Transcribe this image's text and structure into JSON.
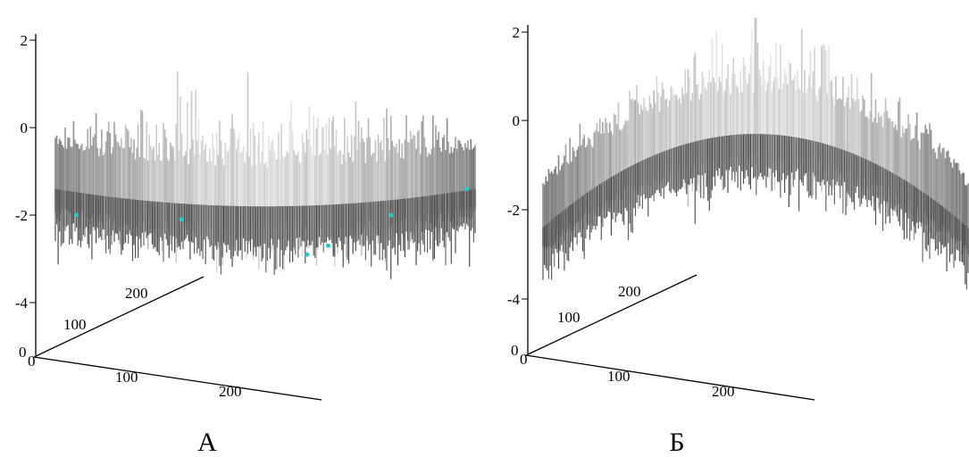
{
  "chart_data": [
    {
      "type": "surface",
      "panel_label": "А",
      "z_ticks": [
        "2",
        "0",
        "-2",
        "-4"
      ],
      "z_range": [
        -4.5,
        2.5
      ],
      "x_ticks": [
        "0",
        "100",
        "200"
      ],
      "y_ticks": [
        "0",
        "100",
        "200"
      ],
      "x_range": [
        0,
        256
      ],
      "y_range": [
        0,
        256
      ],
      "surface_shape": "bowl",
      "center_z": -1.2,
      "edge_z": -0.8,
      "noise_amplitude": 2.0,
      "colormap": "grayscale",
      "highlight_color": "#22cccc"
    },
    {
      "type": "surface",
      "panel_label": "Б",
      "z_ticks": [
        "2",
        "0",
        "-2",
        "-4"
      ],
      "z_range": [
        -4.5,
        2.5
      ],
      "x_ticks": [
        "0",
        "100",
        "200"
      ],
      "y_ticks": [
        "0",
        "100",
        "200"
      ],
      "x_range": [
        0,
        256
      ],
      "y_range": [
        0,
        256
      ],
      "surface_shape": "dome",
      "center_z": 0.3,
      "edge_z": -1.8,
      "center_peak_z": 2.3,
      "noise_amplitude": 1.6,
      "colormap": "grayscale"
    }
  ]
}
